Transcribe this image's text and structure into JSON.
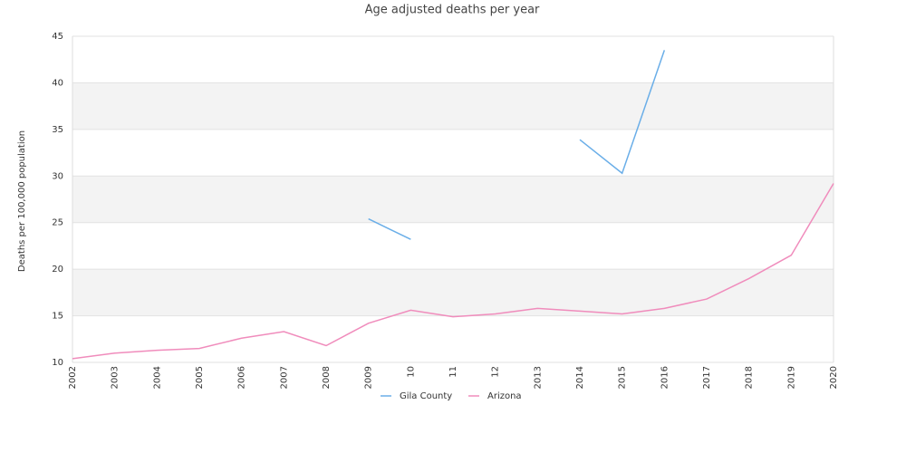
{
  "chart_data": {
    "type": "line",
    "title": "Age adjusted deaths per year",
    "y_label": "Deaths per 100,000 population",
    "categories": [
      "2002",
      "2003",
      "2004",
      "2005",
      "2006",
      "2007",
      "2008",
      "2009",
      "10",
      "11",
      "12",
      "2013",
      "2014",
      "2015",
      "2016",
      "2017",
      "2018",
      "2019",
      "2020"
    ],
    "series": [
      {
        "name": "Gila County",
        "color": "#6aaee8",
        "values": [
          null,
          null,
          null,
          null,
          null,
          null,
          null,
          25.4,
          23.2,
          null,
          null,
          null,
          33.9,
          30.3,
          43.5,
          null,
          null,
          null,
          null
        ]
      },
      {
        "name": "Arizona",
        "color": "#f08cbc",
        "values": [
          10.4,
          11.0,
          11.3,
          11.5,
          12.6,
          13.3,
          11.8,
          14.2,
          15.6,
          14.9,
          15.2,
          15.8,
          15.5,
          15.2,
          15.8,
          16.8,
          19.0,
          21.5,
          29.2
        ]
      }
    ],
    "ylim": [
      10,
      45
    ],
    "yticks": [
      10,
      15,
      20,
      25,
      30,
      35,
      40,
      45
    ],
    "grid": true,
    "legend": "bottom"
  }
}
